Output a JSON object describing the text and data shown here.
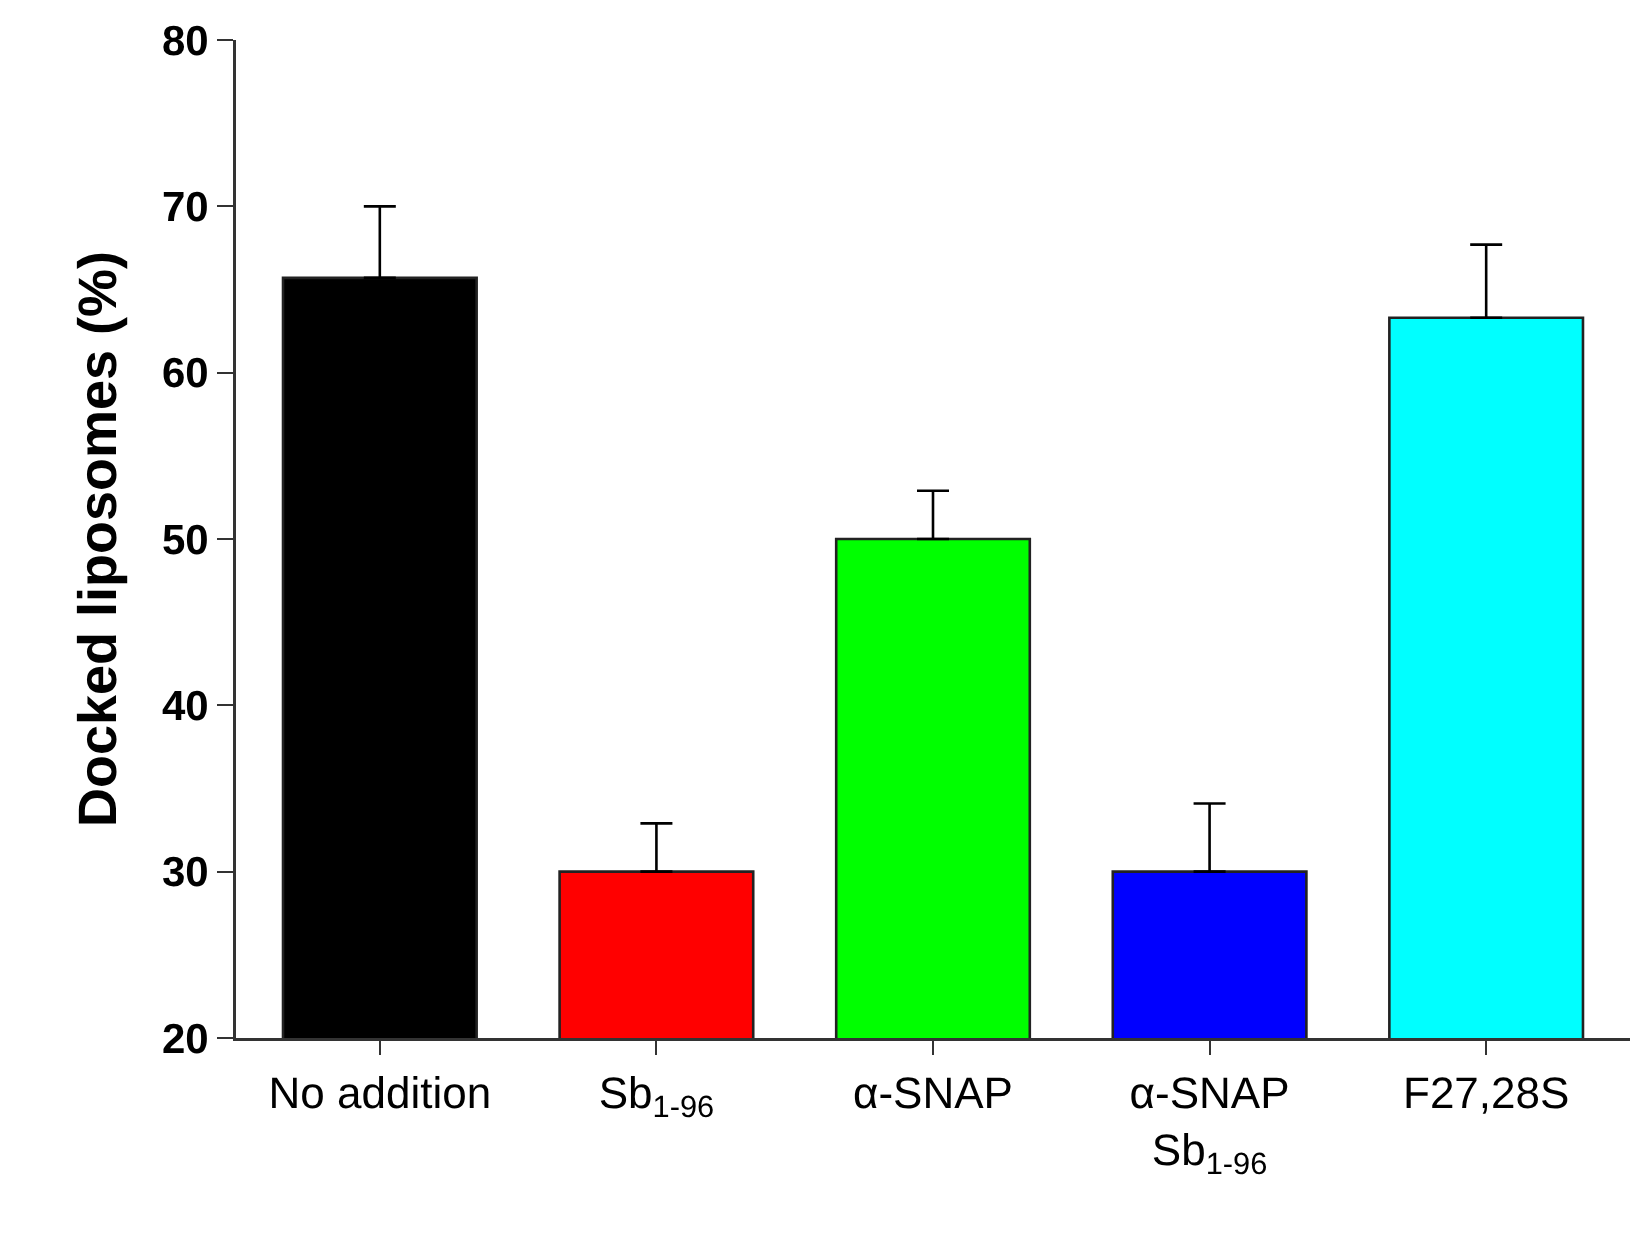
{
  "chart_data": {
    "type": "bar",
    "ylabel": "Docked liposomes (%)",
    "categories": [
      "No addition",
      "Sb$_{1-96}$",
      "α-SNAP",
      "α-SNAP\nSb$_{1-96}$",
      "F27,28S"
    ],
    "values": [
      65.7,
      30,
      50,
      30,
      63.3
    ],
    "errors": [
      [
        65.7,
        70
      ],
      [
        30,
        32.9
      ],
      [
        50,
        52.9
      ],
      [
        30,
        34.1
      ],
      [
        63.3,
        67.7
      ]
    ],
    "colors": [
      "#000000",
      "#ff0000",
      "#00ff00",
      "#0000ff",
      "#00ffff"
    ],
    "ylim": [
      20,
      80
    ],
    "yticks": [
      20,
      30,
      40,
      50,
      60,
      70,
      80
    ],
    "grid": false,
    "legend": false
  }
}
